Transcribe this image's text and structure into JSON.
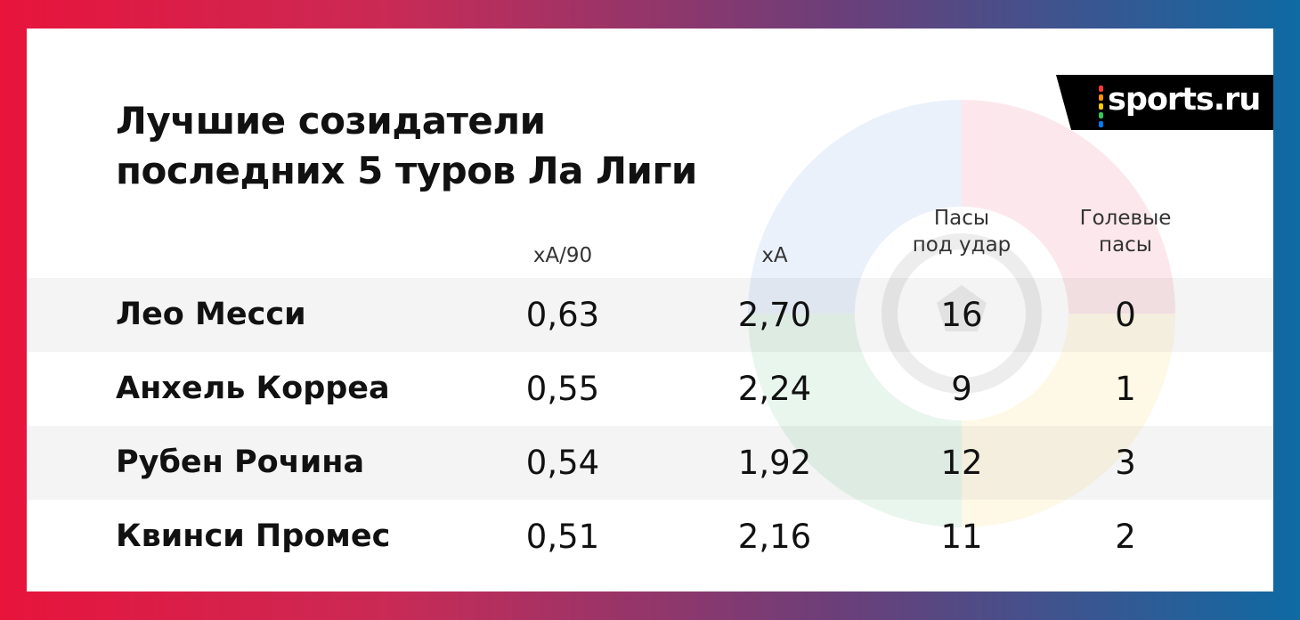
{
  "brand": {
    "logo_text": "sports.ru",
    "dot_colors": [
      "#ff3b30",
      "#ff9500",
      "#ffcc00",
      "#34c759",
      "#007aff",
      "#af52de"
    ]
  },
  "frame_gradient": [
    "#e8143c",
    "#0f6aa3"
  ],
  "title_line1": "Лучшие созидатели",
  "title_line2": "последних 5 туров Ла Лиги",
  "columns": [
    {
      "line1": "",
      "line2": "xA/90"
    },
    {
      "line1": "",
      "line2": "xA"
    },
    {
      "line1": "Пасы",
      "line2": "под удар"
    },
    {
      "line1": "Голевые",
      "line2": "пасы"
    }
  ],
  "rows": [
    {
      "name": "Лео Месси",
      "xa90": "0,63",
      "xa": "2,70",
      "key_passes": "16",
      "assists": "0"
    },
    {
      "name": "Анхель Корреа",
      "xa90": "0,55",
      "xa": "2,24",
      "key_passes": "9",
      "assists": "1"
    },
    {
      "name": "Рубен Рочина",
      "xa90": "0,54",
      "xa": "1,92",
      "key_passes": "12",
      "assists": "3"
    },
    {
      "name": "Квинси Промес",
      "xa90": "0,51",
      "xa": "2,16",
      "key_passes": "11",
      "assists": "2"
    }
  ],
  "watermark_icon": "laliga-logo-icon"
}
